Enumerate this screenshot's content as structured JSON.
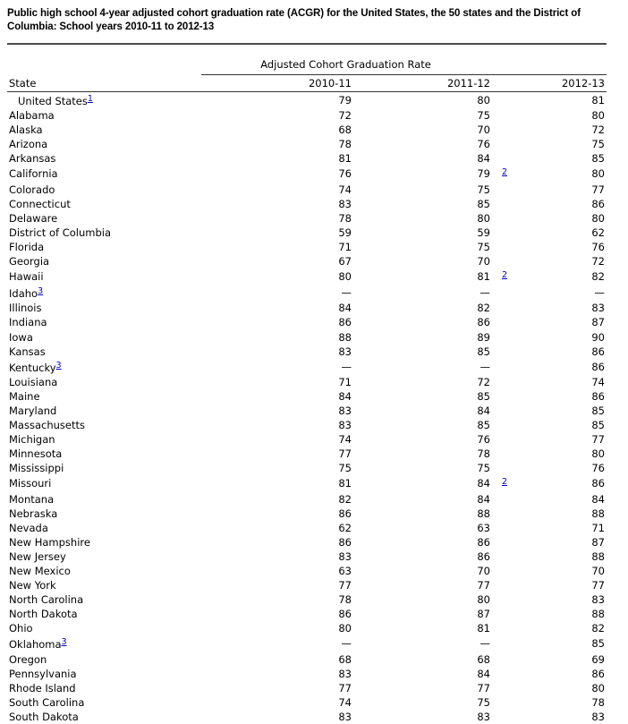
{
  "page": {
    "title_line1": "Public high school 4-year adjusted cohort graduation rate (ACGR) for the United States, the 50 states and the District of",
    "title_line2": "Columbia: School years 2010-11 to 2012-13"
  },
  "colors": {
    "footnote_link": "#0000cc",
    "text": "#000000",
    "rule": "#333333"
  },
  "table": {
    "spanner_label": "Adjusted Cohort Graduation Rate",
    "state_header": "State",
    "year_headers": [
      "2010-11",
      "2011-12",
      "2012-13"
    ],
    "missing_value_symbol": "—",
    "rows": [
      {
        "state": "United States",
        "state_fn": "1",
        "indent": true,
        "v1": "79",
        "v2": "80",
        "v3": "81"
      },
      {
        "state": "Alabama",
        "v1": "72",
        "v2": "75",
        "v3": "80"
      },
      {
        "state": "Alaska",
        "v1": "68",
        "v2": "70",
        "v3": "72"
      },
      {
        "state": "Arizona",
        "v1": "78",
        "v2": "76",
        "v3": "75"
      },
      {
        "state": "Arkansas",
        "v1": "81",
        "v2": "84",
        "v3": "85"
      },
      {
        "state": "California",
        "v1": "76",
        "v2": "79",
        "v2_fn": "2",
        "v3": "80"
      },
      {
        "state": "Colorado",
        "v1": "74",
        "v2": "75",
        "v3": "77"
      },
      {
        "state": "Connecticut",
        "v1": "83",
        "v2": "85",
        "v3": "86"
      },
      {
        "state": "Delaware",
        "v1": "78",
        "v2": "80",
        "v3": "80"
      },
      {
        "state": "District of Columbia",
        "v1": "59",
        "v2": "59",
        "v3": "62"
      },
      {
        "state": "Florida",
        "v1": "71",
        "v2": "75",
        "v3": "76"
      },
      {
        "state": "Georgia",
        "v1": "67",
        "v2": "70",
        "v3": "72"
      },
      {
        "state": "Hawaii",
        "v1": "80",
        "v2": "81",
        "v2_fn": "2",
        "v3": "82"
      },
      {
        "state": "Idaho",
        "state_fn": "3",
        "v1": "—",
        "v2": "—",
        "v3": "—"
      },
      {
        "state": "Illinois",
        "v1": "84",
        "v2": "82",
        "v3": "83"
      },
      {
        "state": "Indiana",
        "v1": "86",
        "v2": "86",
        "v3": "87"
      },
      {
        "state": "Iowa",
        "v1": "88",
        "v2": "89",
        "v3": "90"
      },
      {
        "state": "Kansas",
        "v1": "83",
        "v2": "85",
        "v3": "86"
      },
      {
        "state": "Kentucky",
        "state_fn": "3",
        "v1": "—",
        "v2": "—",
        "v3": "86"
      },
      {
        "state": "Louisiana",
        "v1": "71",
        "v2": "72",
        "v3": "74"
      },
      {
        "state": "Maine",
        "v1": "84",
        "v2": "85",
        "v3": "86"
      },
      {
        "state": "Maryland",
        "v1": "83",
        "v2": "84",
        "v3": "85"
      },
      {
        "state": "Massachusetts",
        "v1": "83",
        "v2": "85",
        "v3": "85"
      },
      {
        "state": "Michigan",
        "v1": "74",
        "v2": "76",
        "v3": "77"
      },
      {
        "state": "Minnesota",
        "v1": "77",
        "v2": "78",
        "v3": "80"
      },
      {
        "state": "Mississippi",
        "v1": "75",
        "v2": "75",
        "v3": "76"
      },
      {
        "state": "Missouri",
        "v1": "81",
        "v2": "84",
        "v2_fn": "2",
        "v3": "86"
      },
      {
        "state": "Montana",
        "v1": "82",
        "v2": "84",
        "v3": "84"
      },
      {
        "state": "Nebraska",
        "v1": "86",
        "v2": "88",
        "v3": "88"
      },
      {
        "state": "Nevada",
        "v1": "62",
        "v2": "63",
        "v3": "71"
      },
      {
        "state": "New Hampshire",
        "v1": "86",
        "v2": "86",
        "v3": "87"
      },
      {
        "state": "New Jersey",
        "v1": "83",
        "v2": "86",
        "v3": "88"
      },
      {
        "state": "New Mexico",
        "v1": "63",
        "v2": "70",
        "v3": "70"
      },
      {
        "state": "New York",
        "v1": "77",
        "v2": "77",
        "v3": "77"
      },
      {
        "state": "North Carolina",
        "v1": "78",
        "v2": "80",
        "v3": "83"
      },
      {
        "state": "North Dakota",
        "v1": "86",
        "v2": "87",
        "v3": "88"
      },
      {
        "state": "Ohio",
        "v1": "80",
        "v2": "81",
        "v3": "82"
      },
      {
        "state": "Oklahoma",
        "state_fn": "3",
        "v1": "—",
        "v2": "—",
        "v3": "85"
      },
      {
        "state": "Oregon",
        "v1": "68",
        "v2": "68",
        "v3": "69"
      },
      {
        "state": "Pennsylvania",
        "v1": "83",
        "v2": "84",
        "v3": "86"
      },
      {
        "state": "Rhode Island",
        "v1": "77",
        "v2": "77",
        "v3": "80"
      },
      {
        "state": "South Carolina",
        "v1": "74",
        "v2": "75",
        "v3": "78"
      },
      {
        "state": "South Dakota",
        "v1": "83",
        "v2": "83",
        "v3": "83"
      }
    ]
  }
}
